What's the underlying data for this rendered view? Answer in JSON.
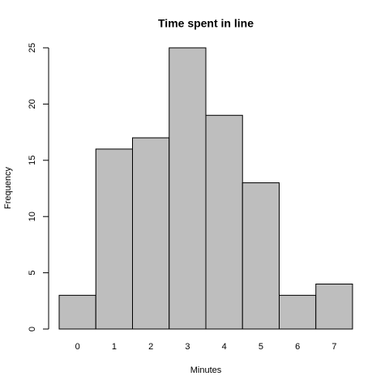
{
  "chart_data": {
    "type": "bar",
    "title": "Time spent in line",
    "x_label": "Minutes",
    "y_label": "Frequency",
    "categories": [
      "0",
      "1",
      "2",
      "3",
      "4",
      "5",
      "6",
      "7"
    ],
    "values": [
      3,
      16,
      17,
      25,
      19,
      13,
      3,
      4
    ],
    "color": "#bebebe",
    "ylim": [
      0,
      25
    ],
    "yticks": [
      0,
      5,
      10,
      15,
      20,
      25
    ],
    "grid": false
  }
}
